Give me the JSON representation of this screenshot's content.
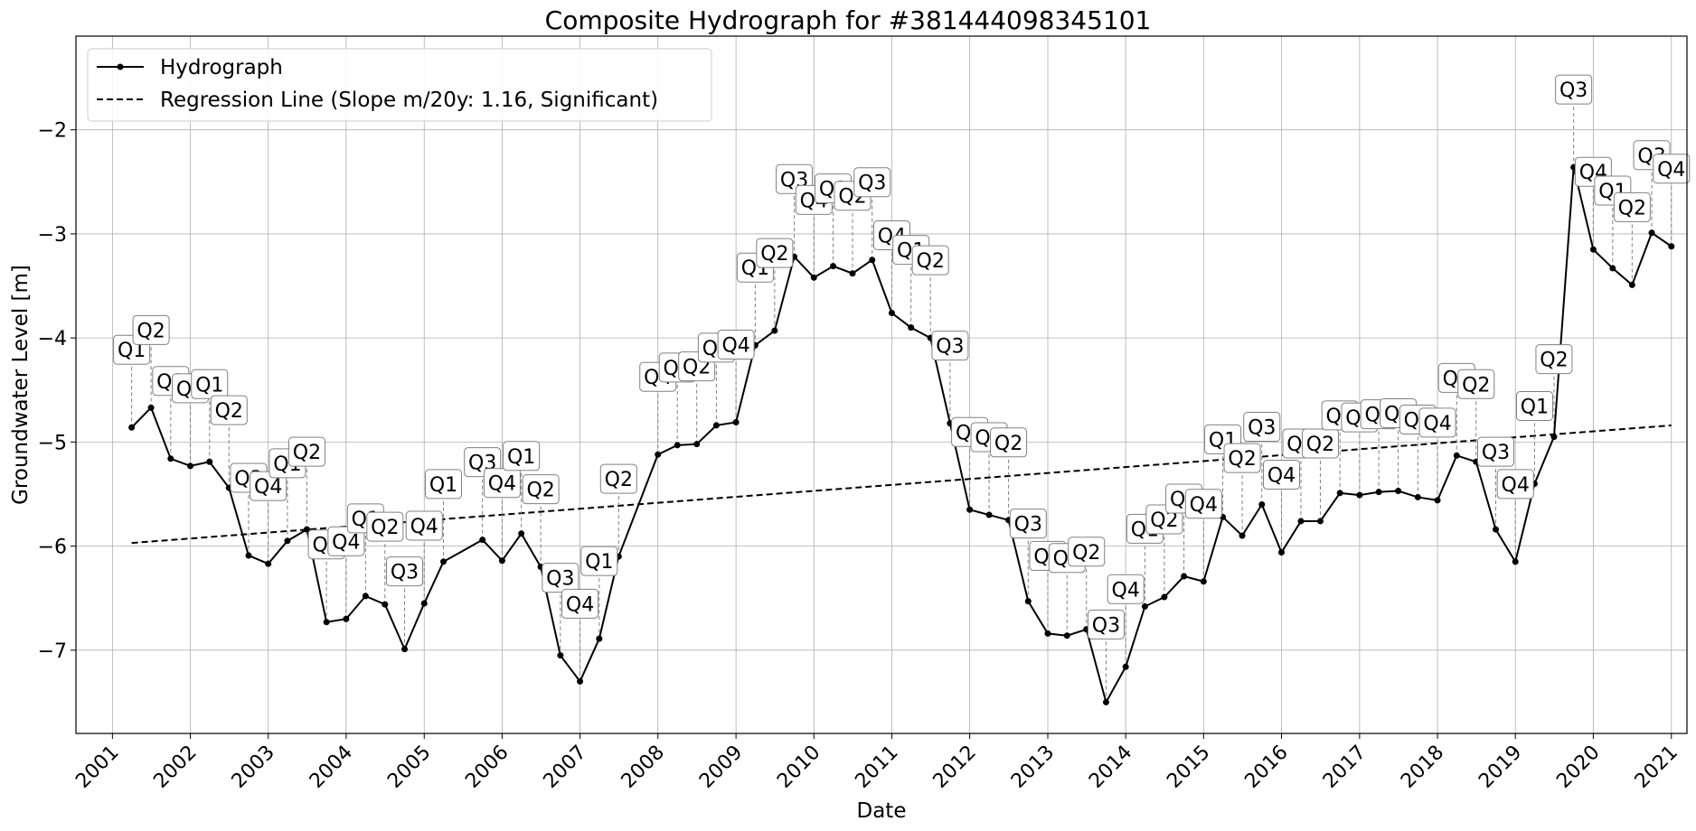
{
  "chart_data": {
    "type": "line",
    "title": "Composite Hydrograph for  #381444098345101",
    "xlabel": "Date",
    "ylabel": "Groundwater Level [m]",
    "xlim": [
      "2000-07-14",
      "2021-03-15"
    ],
    "ylim": [
      -7.8,
      -1.1
    ],
    "x_ticks": [
      "2001",
      "2002",
      "2003",
      "2004",
      "2005",
      "2006",
      "2007",
      "2008",
      "2009",
      "2010",
      "2011",
      "2012",
      "2013",
      "2014",
      "2015",
      "2016",
      "2017",
      "2018",
      "2019",
      "2020",
      "2021"
    ],
    "y_ticks": [
      -7,
      -6,
      -5,
      -4,
      -3,
      -2
    ],
    "y_tick_labels": [
      "−7",
      "−6",
      "−5",
      "−4",
      "−3",
      "−2"
    ],
    "grid": true,
    "legend_position": "upper-left",
    "series": [
      {
        "name": "Hydrograph",
        "style": "solid line with dot markers",
        "color": "#000000",
        "points": [
          {
            "date": "2001-04-01",
            "value": -4.86,
            "label": "Q1"
          },
          {
            "date": "2001-07-01",
            "value": -4.67,
            "label": "Q2"
          },
          {
            "date": "2001-10-01",
            "value": -5.16,
            "label": "Q3"
          },
          {
            "date": "2002-01-01",
            "value": -5.23,
            "label": "Q4"
          },
          {
            "date": "2002-04-01",
            "value": -5.19,
            "label": "Q1"
          },
          {
            "date": "2002-07-01",
            "value": -5.44,
            "label": "Q2"
          },
          {
            "date": "2002-10-01",
            "value": -6.09,
            "label": "Q3"
          },
          {
            "date": "2003-01-01",
            "value": -6.17,
            "label": "Q4"
          },
          {
            "date": "2003-04-01",
            "value": -5.95,
            "label": "Q1"
          },
          {
            "date": "2003-07-01",
            "value": -5.84,
            "label": "Q2"
          },
          {
            "date": "2003-10-01",
            "value": -6.73,
            "label": "Q3"
          },
          {
            "date": "2004-01-01",
            "value": -6.7,
            "label": "Q4"
          },
          {
            "date": "2004-04-01",
            "value": -6.48,
            "label": "Q1"
          },
          {
            "date": "2004-07-01",
            "value": -6.56,
            "label": "Q2"
          },
          {
            "date": "2004-10-01",
            "value": -6.99,
            "label": "Q3"
          },
          {
            "date": "2005-01-01",
            "value": -6.55,
            "label": "Q4"
          },
          {
            "date": "2005-04-01",
            "value": -6.15,
            "label": "Q1"
          },
          {
            "date": "2005-10-01",
            "value": -5.94,
            "label": "Q3"
          },
          {
            "date": "2006-01-01",
            "value": -6.14,
            "label": "Q4"
          },
          {
            "date": "2006-04-01",
            "value": -5.88,
            "label": "Q1"
          },
          {
            "date": "2006-07-01",
            "value": -6.2,
            "label": "Q2"
          },
          {
            "date": "2006-10-01",
            "value": -7.05,
            "label": "Q3"
          },
          {
            "date": "2007-01-01",
            "value": -7.3,
            "label": "Q4"
          },
          {
            "date": "2007-04-01",
            "value": -6.89,
            "label": "Q1"
          },
          {
            "date": "2007-07-01",
            "value": -6.1,
            "label": "Q2"
          },
          {
            "date": "2008-01-01",
            "value": -5.12,
            "label": "Q4"
          },
          {
            "date": "2008-04-01",
            "value": -5.03,
            "label": "Q1"
          },
          {
            "date": "2008-07-01",
            "value": -5.02,
            "label": "Q2"
          },
          {
            "date": "2008-10-01",
            "value": -4.84,
            "label": "Q3"
          },
          {
            "date": "2009-01-01",
            "value": -4.81,
            "label": "Q4"
          },
          {
            "date": "2009-04-01",
            "value": -4.07,
            "label": "Q1"
          },
          {
            "date": "2009-07-01",
            "value": -3.93,
            "label": "Q2"
          },
          {
            "date": "2009-10-01",
            "value": -3.22,
            "label": "Q3"
          },
          {
            "date": "2010-01-01",
            "value": -3.42,
            "label": "Q4"
          },
          {
            "date": "2010-04-01",
            "value": -3.31,
            "label": "Q1"
          },
          {
            "date": "2010-07-01",
            "value": -3.38,
            "label": "Q2"
          },
          {
            "date": "2010-10-01",
            "value": -3.25,
            "label": "Q3"
          },
          {
            "date": "2011-01-01",
            "value": -3.76,
            "label": "Q4"
          },
          {
            "date": "2011-04-01",
            "value": -3.9,
            "label": "Q1"
          },
          {
            "date": "2011-07-01",
            "value": -4.0,
            "label": "Q2"
          },
          {
            "date": "2011-10-01",
            "value": -4.82,
            "label": "Q3"
          },
          {
            "date": "2012-01-01",
            "value": -5.65,
            "label": "Q4"
          },
          {
            "date": "2012-04-01",
            "value": -5.7,
            "label": "Q1"
          },
          {
            "date": "2012-07-01",
            "value": -5.75,
            "label": "Q2"
          },
          {
            "date": "2012-10-01",
            "value": -6.53,
            "label": "Q3"
          },
          {
            "date": "2013-01-01",
            "value": -6.84,
            "label": "Q4"
          },
          {
            "date": "2013-04-01",
            "value": -6.86,
            "label": "Q1"
          },
          {
            "date": "2013-07-01",
            "value": -6.8,
            "label": "Q2"
          },
          {
            "date": "2013-10-01",
            "value": -7.5,
            "label": "Q3"
          },
          {
            "date": "2014-01-01",
            "value": -7.16,
            "label": "Q4"
          },
          {
            "date": "2014-04-01",
            "value": -6.58,
            "label": "Q1"
          },
          {
            "date": "2014-07-01",
            "value": -6.49,
            "label": "Q2"
          },
          {
            "date": "2014-10-01",
            "value": -6.29,
            "label": "Q3"
          },
          {
            "date": "2015-01-01",
            "value": -6.34,
            "label": "Q4"
          },
          {
            "date": "2015-04-01",
            "value": -5.72,
            "label": "Q1"
          },
          {
            "date": "2015-07-01",
            "value": -5.9,
            "label": "Q2"
          },
          {
            "date": "2015-10-01",
            "value": -5.6,
            "label": "Q3"
          },
          {
            "date": "2016-01-01",
            "value": -6.06,
            "label": "Q4"
          },
          {
            "date": "2016-04-01",
            "value": -5.76,
            "label": "Q1"
          },
          {
            "date": "2016-07-01",
            "value": -5.76,
            "label": "Q2"
          },
          {
            "date": "2016-10-01",
            "value": -5.49,
            "label": "Q3"
          },
          {
            "date": "2017-01-01",
            "value": -5.51,
            "label": "Q4"
          },
          {
            "date": "2017-04-01",
            "value": -5.48,
            "label": "Q1"
          },
          {
            "date": "2017-07-01",
            "value": -5.47,
            "label": "Q2"
          },
          {
            "date": "2017-10-01",
            "value": -5.53,
            "label": "Q3"
          },
          {
            "date": "2018-01-01",
            "value": -5.56,
            "label": "Q4"
          },
          {
            "date": "2018-04-01",
            "value": -5.13,
            "label": "Q1"
          },
          {
            "date": "2018-07-01",
            "value": -5.19,
            "label": "Q2"
          },
          {
            "date": "2018-10-01",
            "value": -5.84,
            "label": "Q3"
          },
          {
            "date": "2019-01-01",
            "value": -6.15,
            "label": "Q4"
          },
          {
            "date": "2019-04-01",
            "value": -5.4,
            "label": "Q1"
          },
          {
            "date": "2019-07-01",
            "value": -4.95,
            "label": "Q2"
          },
          {
            "date": "2019-10-01",
            "value": -2.36,
            "label": "Q3"
          },
          {
            "date": "2020-01-01",
            "value": -3.15,
            "label": "Q4"
          },
          {
            "date": "2020-04-01",
            "value": -3.33,
            "label": "Q1"
          },
          {
            "date": "2020-07-01",
            "value": -3.49,
            "label": "Q2"
          },
          {
            "date": "2020-10-01",
            "value": -2.99,
            "label": "Q3"
          },
          {
            "date": "2021-01-01",
            "value": -3.12,
            "label": "Q4"
          }
        ]
      },
      {
        "name": "Regression Line (Slope m/20y: 1.16, Significant)",
        "style": "dashed",
        "color": "#000000",
        "points": [
          {
            "date": "2001-04-01",
            "value": -5.97
          },
          {
            "date": "2021-01-01",
            "value": -4.84
          }
        ]
      }
    ]
  }
}
